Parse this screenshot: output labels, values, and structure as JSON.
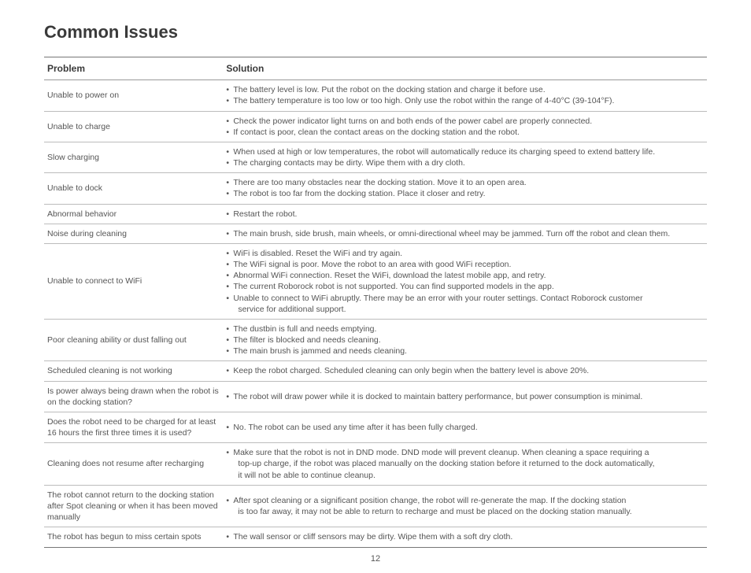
{
  "title": "Common Issues",
  "columns": [
    "Problem",
    "Solution"
  ],
  "page_number": "12",
  "rows": [
    {
      "problem": "Unable to power on",
      "solution": [
        "The battery level is low. Put the robot on the docking station and charge it before use.",
        "The battery temperature is too low or too high. Only use the robot within the range of 4-40°C (39-104°F)."
      ]
    },
    {
      "problem": "Unable to charge",
      "solution": [
        "Check the power indicator light turns on and both ends of the power cabel are properly connected.",
        "If contact is poor, clean the contact areas on the docking station and the robot."
      ]
    },
    {
      "problem": "Slow charging",
      "solution": [
        "When used at high or low temperatures, the robot will automatically reduce its charging speed to extend battery life.",
        "The charging contacts may be dirty. Wipe them with a dry cloth."
      ]
    },
    {
      "problem": "Unable to dock",
      "solution": [
        "There are too many obstacles near the docking station. Move it to an open area.",
        "The robot is too far from the docking station. Place it closer and retry."
      ]
    },
    {
      "problem": "Abnormal behavior",
      "solution": [
        "Restart the robot."
      ]
    },
    {
      "problem": "Noise during cleaning",
      "solution": [
        "The main brush, side brush, main wheels, or omni-directional wheel may be jammed. Turn off the robot and clean them."
      ]
    },
    {
      "problem": "Unable to connect to WiFi",
      "solution": [
        "WiFi is disabled. Reset the WiFi and try again.",
        "The WiFi signal is poor. Move the robot to an area with good WiFi reception.",
        "Abnormal WiFi connection. Reset the WiFi, download the latest mobile app, and retry.",
        "The current Roborock robot is not supported. You can find supported models in the app.",
        [
          "Unable to connect to WiFi abruptly. There may be an error with your router settings. Contact Roborock customer",
          "service for additional support."
        ]
      ]
    },
    {
      "problem": "Poor cleaning ability or dust falling out",
      "solution": [
        "The dustbin is full and needs emptying.",
        "The filter is blocked and needs cleaning.",
        "The main brush is jammed and needs cleaning."
      ]
    },
    {
      "problem": "Scheduled cleaning is not working",
      "solution": [
        "Keep the robot charged. Scheduled cleaning can only begin when the battery level is above 20%."
      ]
    },
    {
      "problem": "Is power always being drawn when the robot is on the docking station?",
      "solution": [
        "The robot will draw power while it is docked to maintain battery performance, but power consumption is minimal."
      ]
    },
    {
      "problem": "Does the robot need to be charged for at least 16 hours the first three times it is used?",
      "solution": [
        "No. The robot can be used any time after it has been fully charged."
      ]
    },
    {
      "problem": "Cleaning does not resume after recharging",
      "solution": [
        [
          "Make sure that the robot is not in DND mode. DND mode will prevent cleanup. When cleaning a space requiring a",
          "top-up charge, if the robot was placed manually on the docking station before it returned to the dock automatically,",
          "it will not be able to continue cleanup."
        ]
      ]
    },
    {
      "problem": "The robot cannot return to the docking station after Spot cleaning or when it has been moved manually",
      "solution": [
        [
          "After spot cleaning or a significant position change, the robot will re-generate the map. If the docking station",
          "is too far away, it may not be able to return to recharge and must be placed on the docking station manually."
        ]
      ]
    },
    {
      "problem": "The robot has begun to miss certain spots",
      "solution": [
        "The wall sensor or cliff sensors may be dirty. Wipe them with a soft dry cloth."
      ]
    }
  ]
}
